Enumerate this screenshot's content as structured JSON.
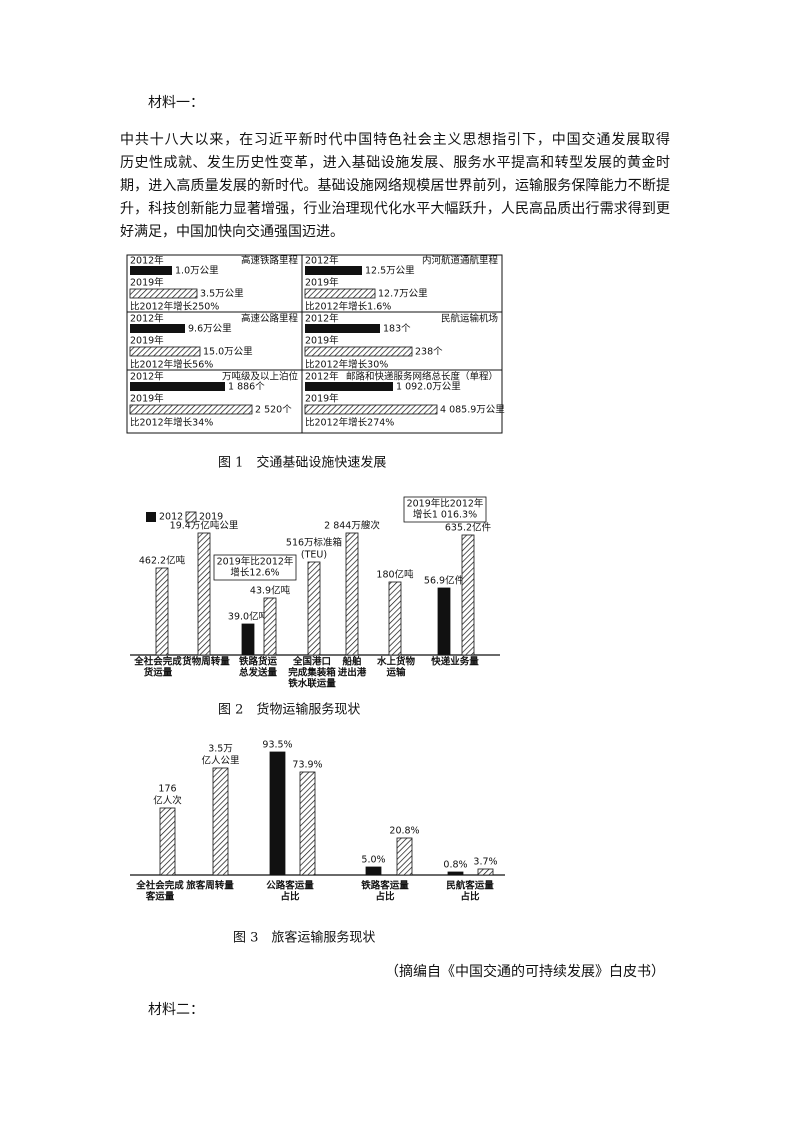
{
  "material1": {
    "heading": "材料一：",
    "paragraph": [
      "中共十八大以来，在习近平新时代中国特色社会主义思想指引下，中国交通发展取得",
      "历史性成就、发生历史性变革，进入基础设施发展、服务水平提高和转型发展的黄金时",
      "期，进入高质量发展的新时代。基础设施网络规模居世界前列，运输服务保障能力不断提",
      "升，科技创新能力显著增强，行业治理现代化水平大幅跃升，人民高品质出行需求得到更",
      "好满足，中国加快向交通强国迈进。"
    ]
  },
  "figure1": {
    "year_2012": "2012年",
    "year_2019": "2019年",
    "panels": [
      {
        "title": "高速铁路里程",
        "value_2012": "1.0万公里",
        "value_2019": "3.5万公里",
        "growth": "比2012年增长250%"
      },
      {
        "title": "高速公路里程",
        "value_2012": "9.6万公里",
        "value_2019": "15.0万公里",
        "growth": "比2012年增长56%"
      },
      {
        "title": "万吨级及以上泊位",
        "value_2012": "1 886个",
        "value_2019": "2 520个",
        "growth": "比2012年增长34%"
      },
      {
        "title": "内河航道通航里程",
        "value_2012": "12.5万公里",
        "value_2019": "12.7万公里",
        "growth": "比2012年增长1.6%"
      },
      {
        "title": "民航运输机场",
        "value_2012": "183个",
        "value_2019": "238个",
        "growth": "比2012年增长30%"
      },
      {
        "title": "邮路和快递服务网络总长度（单程）",
        "value_2012": "1 092.0万公里",
        "value_2019": "4 085.9万公里",
        "growth": "比2012年增长274%"
      }
    ],
    "caption": "图 1　交通基础设施快速发展"
  },
  "figure2": {
    "legend": [
      "2012",
      "2019"
    ],
    "groups": [
      {
        "label": [
          "全社会完成",
          "货运量"
        ],
        "value_2019": [
          "462.2亿吨"
        ]
      },
      {
        "label": [
          "货物周转量"
        ],
        "value_2019": [
          "19.4万亿吨公里"
        ]
      },
      {
        "label": [
          "铁路货运",
          "总发送量"
        ],
        "value_2012": [
          "39.0亿吨"
        ],
        "value_2019": [
          "43.9亿吨"
        ]
      },
      {
        "label": [
          "全国港口",
          "完成集装箱",
          "铁水联运量"
        ],
        "value_2019": [
          "516万标准箱",
          "(TEU)"
        ]
      },
      {
        "label": [
          "船舶",
          "进出港"
        ],
        "value_2019": [
          "2 844万艘次"
        ]
      },
      {
        "label": [
          "水上货物",
          "运输"
        ],
        "value_2019": [
          "180亿吨"
        ]
      },
      {
        "label": [
          "快递业务量"
        ],
        "value_2012": [
          "56.9亿件"
        ],
        "value_2019": [
          "635.2亿件"
        ]
      }
    ],
    "callouts": [
      [
        "2019年比2012年",
        "增长12.6%"
      ],
      [
        "2019年比2012年",
        "增长1 016.3%"
      ]
    ],
    "caption": "图 2　货物运输服务现状"
  },
  "figure3": {
    "groups": [
      {
        "label": [
          "全社会完成",
          "客运量"
        ],
        "value_2019": [
          "176",
          "亿人次"
        ]
      },
      {
        "label": [
          "旅客周转量"
        ],
        "value_2019": [
          "3.5万",
          "亿人公里"
        ]
      },
      {
        "label": [
          "公路客运量",
          "占比"
        ],
        "value_2012": [
          "93.5%"
        ],
        "value_2019": [
          "73.9%"
        ]
      },
      {
        "label": [
          "铁路客运量",
          "占比"
        ],
        "value_2012": [
          "5.0%"
        ],
        "value_2019": [
          "20.8%"
        ]
      },
      {
        "label": [
          "民航客运量",
          "占比"
        ],
        "value_2012": [
          "0.8%"
        ],
        "value_2019": [
          "3.7%"
        ]
      }
    ],
    "caption": "图 3　旅客运输服务现状"
  },
  "source": "（摘编自《中国交通的可持续发展》白皮书）",
  "material2": {
    "heading": "材料二："
  }
}
